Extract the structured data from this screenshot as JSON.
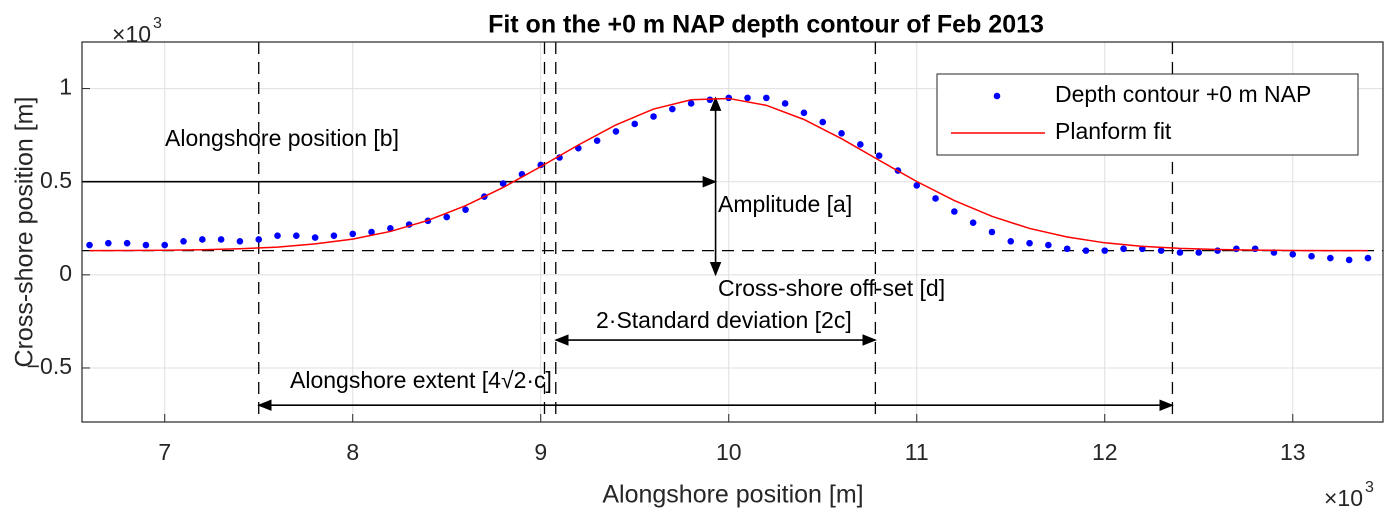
{
  "chart_data": {
    "type": "scatter",
    "title": "Fit on the +0 m NAP depth contour of Feb 2013",
    "x_label": "Alongshore position [m]",
    "y_label": "Cross-shore position [m]",
    "x_multiplier": {
      "base": "×10",
      "exponent": "3"
    },
    "y_multiplier": {
      "base": "×10",
      "exponent": "3"
    },
    "xlim": [
      6.56,
      13.48
    ],
    "ylim": [
      -0.79,
      1.25
    ],
    "xticks": [
      7,
      8,
      9,
      10,
      11,
      12,
      13
    ],
    "yticks": [
      {
        "value": -0.5,
        "label": "−0.5"
      },
      0,
      0.5,
      1
    ],
    "grid": true,
    "legend": "top-right",
    "series": [
      {
        "name": "Depth contour +0 m NAP",
        "color": "#0000ff",
        "type": "scatter",
        "x": [
          6.6,
          6.7,
          6.8,
          6.9,
          7.0,
          7.1,
          7.2,
          7.3,
          7.4,
          7.5,
          7.6,
          7.7,
          7.8,
          7.9,
          8.0,
          8.1,
          8.2,
          8.3,
          8.4,
          8.5,
          8.6,
          8.7,
          8.8,
          8.9,
          9.0,
          9.1,
          9.2,
          9.3,
          9.4,
          9.5,
          9.6,
          9.7,
          9.8,
          9.9,
          10.0,
          10.1,
          10.2,
          10.3,
          10.4,
          10.5,
          10.6,
          10.7,
          10.8,
          10.9,
          11.0,
          11.1,
          11.2,
          11.3,
          11.4,
          11.5,
          11.6,
          11.7,
          11.8,
          11.9,
          12.0,
          12.1,
          12.2,
          12.3,
          12.4,
          12.5,
          12.6,
          12.7,
          12.8,
          12.9,
          13.0,
          13.1,
          13.2,
          13.3,
          13.4
        ],
        "values": [
          0.16,
          0.17,
          0.17,
          0.16,
          0.16,
          0.18,
          0.19,
          0.19,
          0.18,
          0.19,
          0.21,
          0.21,
          0.2,
          0.21,
          0.22,
          0.23,
          0.25,
          0.27,
          0.29,
          0.31,
          0.35,
          0.42,
          0.49,
          0.54,
          0.59,
          0.63,
          0.68,
          0.72,
          0.77,
          0.81,
          0.85,
          0.89,
          0.92,
          0.94,
          0.95,
          0.95,
          0.95,
          0.92,
          0.87,
          0.82,
          0.76,
          0.7,
          0.64,
          0.56,
          0.48,
          0.41,
          0.34,
          0.28,
          0.23,
          0.18,
          0.17,
          0.16,
          0.14,
          0.13,
          0.13,
          0.14,
          0.14,
          0.13,
          0.12,
          0.12,
          0.13,
          0.14,
          0.14,
          0.12,
          0.11,
          0.1,
          0.09,
          0.08,
          0.09
        ]
      },
      {
        "name": "Planform fit",
        "color": "#ff0000",
        "type": "line",
        "x": [
          6.6,
          6.8,
          7.0,
          7.2,
          7.4,
          7.6,
          7.8,
          8.0,
          8.2,
          8.4,
          8.6,
          8.8,
          9.0,
          9.2,
          9.4,
          9.6,
          9.8,
          10.0,
          10.2,
          10.4,
          10.6,
          10.8,
          11.0,
          11.2,
          11.4,
          11.6,
          11.8,
          12.0,
          12.2,
          12.4,
          12.6,
          12.8,
          13.0,
          13.2,
          13.4
        ],
        "values": [
          0.13,
          0.131,
          0.132,
          0.135,
          0.14,
          0.149,
          0.166,
          0.192,
          0.233,
          0.292,
          0.371,
          0.469,
          0.581,
          0.697,
          0.805,
          0.89,
          0.94,
          0.947,
          0.91,
          0.834,
          0.731,
          0.615,
          0.501,
          0.399,
          0.314,
          0.249,
          0.203,
          0.172,
          0.153,
          0.142,
          0.136,
          0.133,
          0.131,
          0.13,
          0.13
        ]
      }
    ],
    "vlines": [
      7.5,
      9.02,
      9.08,
      10.78,
      12.36
    ],
    "hline": 0.13,
    "arrows": [
      {
        "x": [
          6.56,
          9.93
        ],
        "y": [
          0.5,
          0.5
        ],
        "heads": "end"
      },
      {
        "x": [
          9.93,
          9.93
        ],
        "y": [
          0.0,
          0.95
        ],
        "heads": "both"
      },
      {
        "x": [
          9.08,
          10.78
        ],
        "y": [
          -0.35,
          -0.35
        ],
        "heads": "both"
      },
      {
        "x": [
          7.5,
          12.36
        ],
        "y": [
          -0.7,
          -0.7
        ],
        "heads": "both"
      }
    ],
    "annotations": [
      "Alongshore position [b]",
      "Amplitude [a]",
      "Cross-shore off-set [d]",
      "2·Standard deviation [2c]",
      "Alongshore extent [4√2·c]"
    ]
  }
}
